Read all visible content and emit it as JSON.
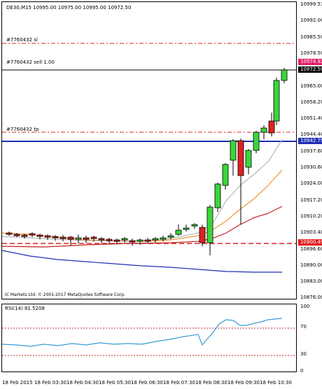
{
  "chart": {
    "title": "DE30,M15  10995.00 10975.00 10995.00 10972.50",
    "copyright": "IC Markets Ltd. © 2001-2017 MetaQuotes Software Corp."
  },
  "orders": {
    "sl_label": "#7760432 sl",
    "entry_label": "#7760432 sell 1.00",
    "tp_label": "#7760432 tp"
  },
  "price_axis": {
    "labels": [
      "10999.53",
      "10992.00",
      "10985.50",
      "10978.50",
      "10972.00",
      "10965.00",
      "10958.20",
      "10951.40",
      "10944.40",
      "10937.60",
      "10930.60",
      "10924.00",
      "10917.20",
      "10910.20",
      "10903.40",
      "10896.60",
      "10890.00",
      "10883.00",
      "10876.00"
    ],
    "highlights": {
      "ask": {
        "text": "10974.92",
        "color": "#e2206a"
      },
      "bid": {
        "text": "10972.50",
        "color": "#000000"
      },
      "level": {
        "text": "10942.79",
        "color": "#1f2fb5"
      },
      "stop": {
        "text": "10900.49",
        "color": "#e02020"
      }
    }
  },
  "indicator": {
    "label": "RSI(14) 81.5208",
    "levels": [
      "100",
      "70",
      "30",
      "0"
    ]
  },
  "time_axis": [
    "18 Feb 2015",
    "18 Feb 03:30",
    "18 Feb 04:30",
    "18 Feb 05:30",
    "18 Feb 06:30",
    "18 Feb 07:30",
    "18 Feb 08:30",
    "18 Feb 09:30",
    "18 Feb 10:30"
  ],
  "colors": {
    "bull": "#3ad63a",
    "bear": "#e02020",
    "level_line": "#1f2fb5",
    "ma_fast": "#f2952f",
    "ma_mid": "#b8b8b8",
    "ma_slow": "#c02020",
    "ma_long": "#1f2fb5",
    "rsi_line": "#3a9ad6"
  }
}
